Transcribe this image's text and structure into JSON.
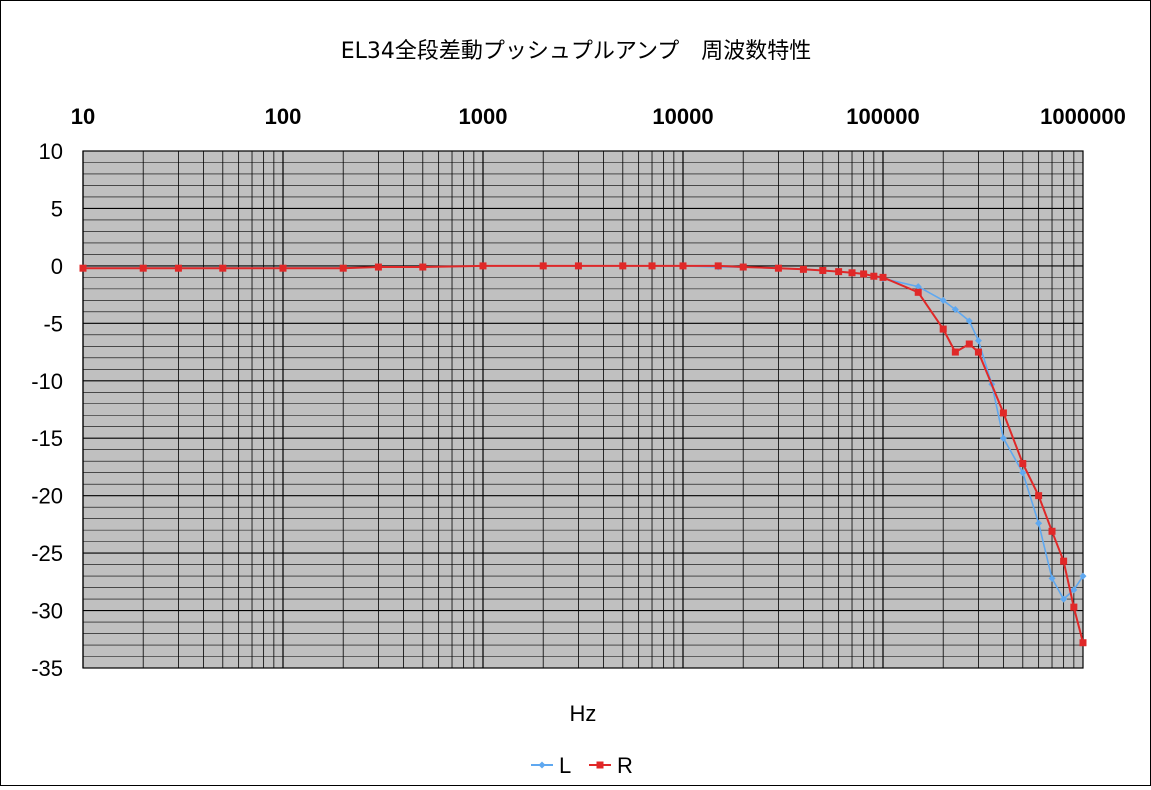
{
  "chart_data": {
    "type": "line",
    "title": "EL34全段差動プッシュプルアンプ　周波数特性",
    "xlabel": "Hz",
    "ylabel": "",
    "x_scale": "log",
    "xlim": [
      10,
      1000000
    ],
    "ylim": [
      -35,
      10
    ],
    "x_tick_labels": [
      "10",
      "100",
      "1000",
      "10000",
      "100000",
      "1000000"
    ],
    "y_tick_labels": [
      "10",
      "5",
      "0",
      "-5",
      "-10",
      "-15",
      "-20",
      "-25",
      "-30",
      "-35"
    ],
    "x_axis_position": "top",
    "grid": true,
    "legend": "bottom",
    "colors": {
      "L": "#5fa8f0",
      "R": "#e02828",
      "plot_bg": "#c0c0c0",
      "grid": "#000000"
    },
    "series": [
      {
        "name": "L",
        "marker": "diamond",
        "points": [
          [
            10,
            -0.2
          ],
          [
            20,
            -0.2
          ],
          [
            30,
            -0.2
          ],
          [
            50,
            -0.2
          ],
          [
            100,
            -0.2
          ],
          [
            200,
            -0.2
          ],
          [
            300,
            -0.1
          ],
          [
            500,
            -0.1
          ],
          [
            1000,
            0
          ],
          [
            2000,
            0
          ],
          [
            3000,
            0
          ],
          [
            5000,
            0
          ],
          [
            7000,
            0
          ],
          [
            10000,
            0
          ],
          [
            15000,
            -0.1
          ],
          [
            20000,
            -0.1
          ],
          [
            30000,
            -0.2
          ],
          [
            40000,
            -0.3
          ],
          [
            50000,
            -0.4
          ],
          [
            60000,
            -0.5
          ],
          [
            70000,
            -0.6
          ],
          [
            80000,
            -0.7
          ],
          [
            90000,
            -0.9
          ],
          [
            100000,
            -1.1
          ],
          [
            150000,
            -1.8
          ],
          [
            200000,
            -3.0
          ],
          [
            230000,
            -3.8
          ],
          [
            270000,
            -4.8
          ],
          [
            300000,
            -6.5
          ],
          [
            350000,
            -10.3
          ],
          [
            400000,
            -15.0
          ],
          [
            500000,
            -18.0
          ],
          [
            600000,
            -22.4
          ],
          [
            700000,
            -27.2
          ],
          [
            800000,
            -29.0
          ],
          [
            900000,
            -28.2
          ],
          [
            1000000,
            -27.0
          ]
        ]
      },
      {
        "name": "R",
        "marker": "square",
        "points": [
          [
            10,
            -0.2
          ],
          [
            20,
            -0.2
          ],
          [
            30,
            -0.2
          ],
          [
            50,
            -0.2
          ],
          [
            100,
            -0.2
          ],
          [
            200,
            -0.2
          ],
          [
            300,
            -0.1
          ],
          [
            500,
            -0.1
          ],
          [
            1000,
            0
          ],
          [
            2000,
            0
          ],
          [
            3000,
            0
          ],
          [
            5000,
            0
          ],
          [
            7000,
            0
          ],
          [
            10000,
            0
          ],
          [
            15000,
            0
          ],
          [
            20000,
            -0.1
          ],
          [
            30000,
            -0.2
          ],
          [
            40000,
            -0.3
          ],
          [
            50000,
            -0.4
          ],
          [
            60000,
            -0.5
          ],
          [
            70000,
            -0.6
          ],
          [
            80000,
            -0.7
          ],
          [
            90000,
            -0.9
          ],
          [
            100000,
            -1.0
          ],
          [
            150000,
            -2.3
          ],
          [
            200000,
            -5.5
          ],
          [
            230000,
            -7.5
          ],
          [
            270000,
            -6.8
          ],
          [
            300000,
            -7.5
          ],
          [
            400000,
            -12.8
          ],
          [
            500000,
            -17.2
          ],
          [
            600000,
            -20.0
          ],
          [
            700000,
            -23.1
          ],
          [
            800000,
            -25.7
          ],
          [
            900000,
            -29.7
          ],
          [
            1000000,
            -32.8
          ]
        ]
      }
    ]
  }
}
